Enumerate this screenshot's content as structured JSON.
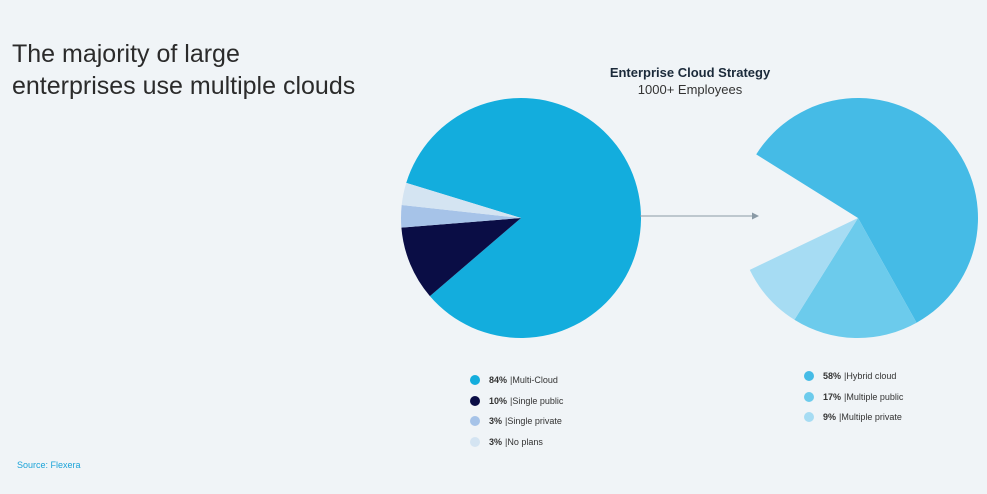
{
  "slide": {
    "title_lines": [
      "The majority of large",
      "enterprises use multiple clouds"
    ],
    "source": "Source: Flexera"
  },
  "chart_data": [
    {
      "type": "pie",
      "title": "",
      "categories": [
        "Multi-Cloud",
        "Single public",
        "Single private",
        "No plans"
      ],
      "values": [
        84,
        10,
        3,
        3
      ],
      "value_labels": [
        "84%",
        "10%",
        "3%",
        "3%"
      ],
      "colors": [
        "#13addd",
        "#0a0d45",
        "#a6c3e8",
        "#d4e4f2"
      ],
      "legend_position": "bottom"
    },
    {
      "type": "pie",
      "title": "Enterprise Cloud Strategy",
      "subtitle": "1000+ Employees",
      "categories": [
        "Hybrid cloud",
        "Multiple public",
        "Multiple private"
      ],
      "values": [
        58,
        17,
        9
      ],
      "value_labels": [
        "58%",
        "17%",
        "9%"
      ],
      "colors": [
        "#45bbe6",
        "#6ccbec",
        "#a6dcf3"
      ],
      "legend_position": "bottom",
      "note": "breakdown of the Multi-Cloud segment; remaining wedge left empty"
    }
  ]
}
